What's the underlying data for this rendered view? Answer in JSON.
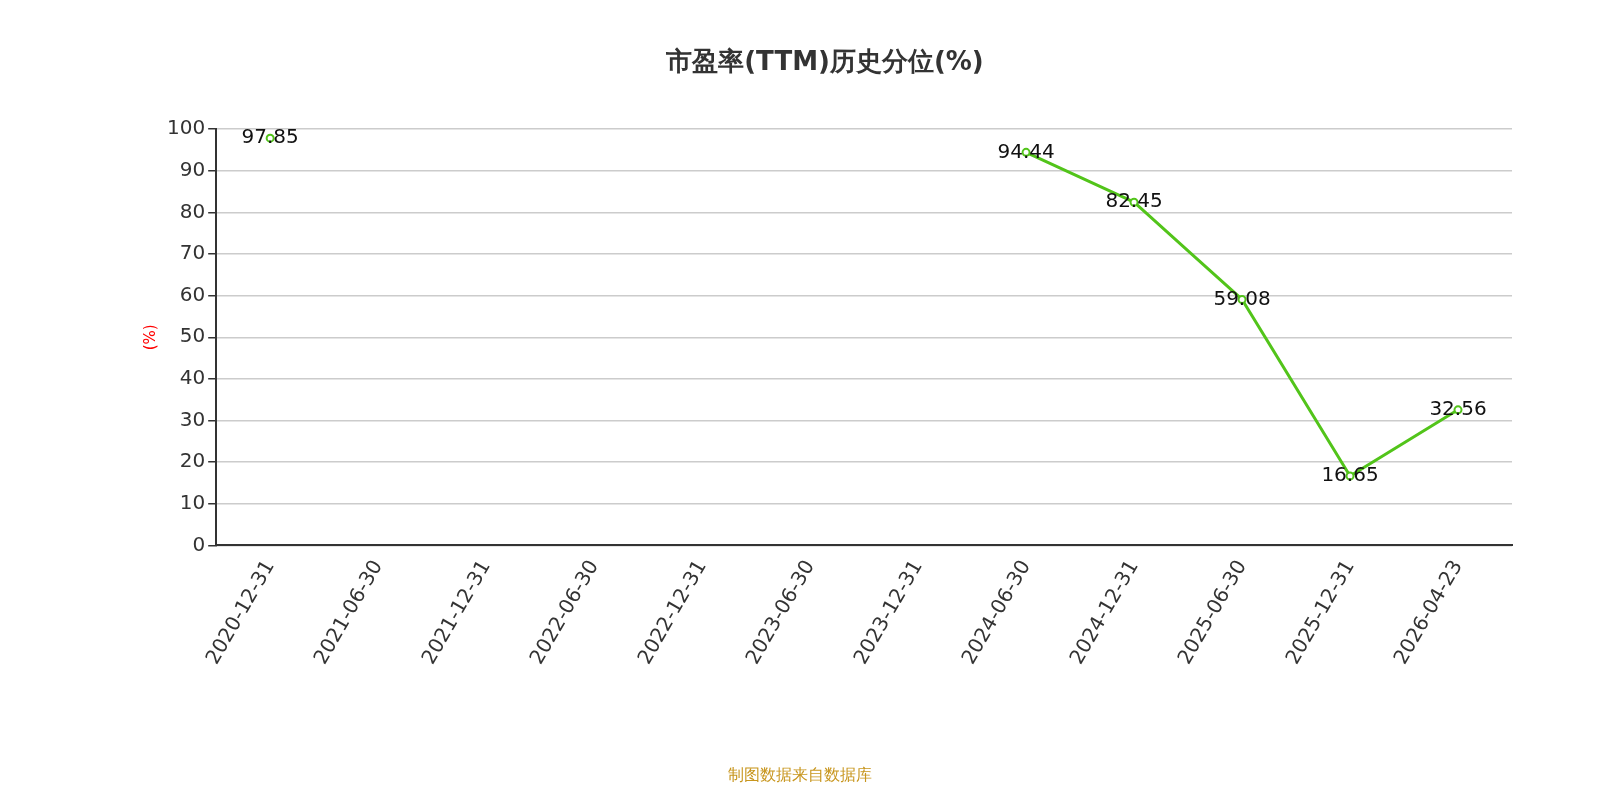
{
  "chart_data": {
    "type": "line",
    "title": "市盈率(TTM)历史分位(%)",
    "ylabel": "(%)",
    "categories": [
      "2020-12-31",
      "2021-06-30",
      "2021-12-31",
      "2022-06-30",
      "2022-12-31",
      "2023-06-30",
      "2023-12-31",
      "2024-06-30",
      "2024-12-31",
      "2025-06-30",
      "2025-12-31",
      "2026-04-23"
    ],
    "series": [
      {
        "color": "#52c41a",
        "values": [
          97.85,
          null,
          null,
          null,
          null,
          null,
          null,
          94.44,
          82.45,
          59.08,
          16.65,
          32.56
        ]
      }
    ],
    "ylim": [
      0,
      100
    ],
    "yticks": [
      0,
      10,
      20,
      30,
      40,
      50,
      60,
      70,
      80,
      90,
      100
    ],
    "grid": "y",
    "legend": false,
    "marker": "circle",
    "line_style": "solid",
    "data_labels": true,
    "annotations": [
      "制图数据来自数据库"
    ]
  }
}
